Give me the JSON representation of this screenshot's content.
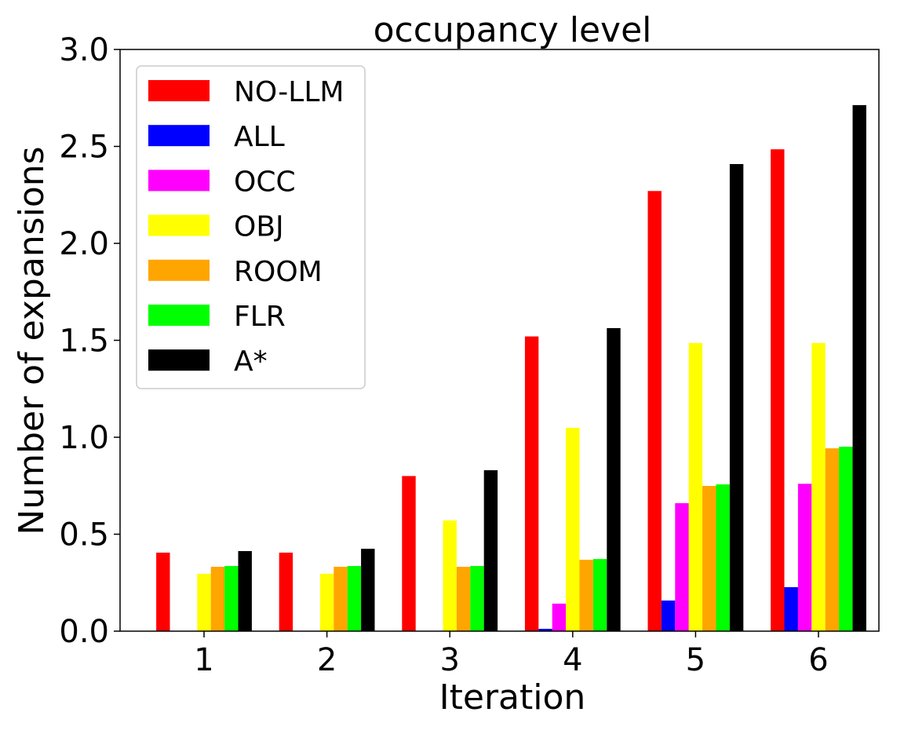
{
  "chart_data": {
    "type": "bar",
    "title": "occupancy level",
    "xlabel": "Iteration",
    "ylabel": "Number of expansions",
    "categories": [
      "1",
      "2",
      "3",
      "4",
      "5",
      "6"
    ],
    "ylim": [
      0,
      3.0
    ],
    "yticks": [
      "0.0",
      "0.5",
      "1.0",
      "1.5",
      "2.0",
      "2.5",
      "3.0"
    ],
    "grid": false,
    "legend_position": "top-left",
    "series": [
      {
        "name": "NO-LLM",
        "color": "#ff0000",
        "values": [
          0.405,
          0.405,
          0.8,
          1.52,
          2.27,
          2.485
        ]
      },
      {
        "name": "ALL",
        "color": "#0000ff",
        "values": [
          0,
          0,
          0,
          0.012,
          0.158,
          0.227
        ]
      },
      {
        "name": "OCC",
        "color": "#ff00ff",
        "values": [
          0,
          0,
          0,
          0.142,
          0.66,
          0.76
        ]
      },
      {
        "name": "OBJ",
        "color": "#ffff00",
        "values": [
          0.296,
          0.296,
          0.571,
          1.049,
          1.486,
          1.486
        ]
      },
      {
        "name": "ROOM",
        "color": "#ffa500",
        "values": [
          0.332,
          0.332,
          0.332,
          0.368,
          0.749,
          0.943
        ]
      },
      {
        "name": "FLR",
        "color": "#00ff00",
        "values": [
          0.336,
          0.336,
          0.336,
          0.372,
          0.757,
          0.951
        ]
      },
      {
        "name": "A*",
        "color": "#000000",
        "values": [
          0.413,
          0.425,
          0.83,
          1.563,
          2.409,
          2.713
        ]
      }
    ]
  }
}
